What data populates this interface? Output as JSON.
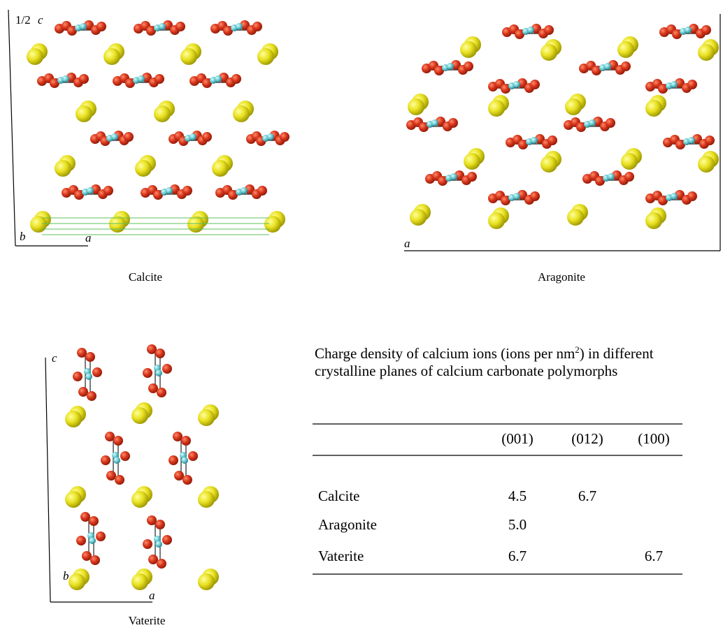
{
  "panels": [
    {
      "caption": "Calcite",
      "axis_labels": {
        "c_prefix": "1/2",
        "c": "c",
        "b": "b",
        "a": "a"
      }
    },
    {
      "caption": "Aragonite",
      "axis_labels": {
        "a": "a"
      }
    },
    {
      "caption": "Vaterite",
      "axis_labels": {
        "c": "c",
        "b": "b",
        "a": "a"
      }
    }
  ],
  "table": {
    "title_parts": [
      "Charge density of calcium ions (ions per nm",
      "2",
      ") in different crystalline planes of calcium carbonate polymorphs"
    ],
    "columns": [
      "(001)",
      "(012)",
      "(100)"
    ],
    "rows": [
      {
        "label": "Calcite",
        "cells": [
          "4.5",
          "6.7",
          null
        ]
      },
      {
        "label": "Aragonite",
        "cells": [
          "5.0",
          null,
          null
        ]
      },
      {
        "label": "Vaterite",
        "cells": [
          "6.7",
          null,
          "6.7"
        ]
      }
    ]
  }
}
